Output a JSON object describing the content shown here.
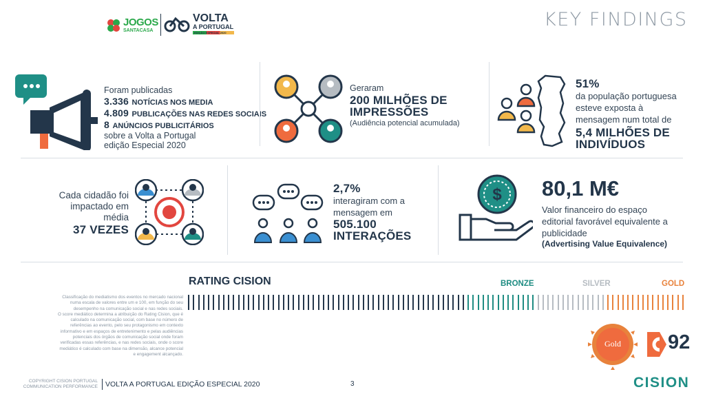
{
  "header": {
    "logo_jogos": "JOGOS",
    "logo_santacasa": "SANTACASA",
    "logo_volta_line1": "VOLTA",
    "logo_volta_line2": "A PORTUGAL",
    "logo_volta_line3": "EDIÇÃO ESPECIAL 2020",
    "title": "KEY FINDINGS"
  },
  "findings": {
    "publications": {
      "intro": "Foram publicadas",
      "news_count": "3.336",
      "news_label": "NOTÍCIAS NOS MEDIA",
      "social_count": "4.809",
      "social_label": "PUBLICAÇÕES NAS REDES SOCIAIS",
      "ads_count": "8",
      "ads_label": "ANÚNCIOS PUBLICITÁRIOS",
      "outro_line1": "sobre a Volta a Portugal",
      "outro_line2": "edição Especial 2020"
    },
    "impressions": {
      "intro": "Geraram",
      "value_line1": "200 MILHÕES DE",
      "value_line2": "IMPRESSÕES",
      "note": "(Audiência potencial acumulada)"
    },
    "population": {
      "percent": "51%",
      "line1": "da população portuguesa",
      "line2": "esteve exposta à",
      "line3": "mensagem num total de",
      "value_line1": "5,4 MILHÕES DE",
      "value_line2": "INDIVÍDUOS"
    },
    "impact": {
      "line1": "Cada cidadão foi",
      "line2": "impactado em",
      "line3": "média",
      "value": "37 VEZES"
    },
    "interaction": {
      "percent": "2,7%",
      "line1": "interagiram com a",
      "line2": "mensagem em",
      "value_line1": "505.100",
      "value_line2": "INTERAÇÕES"
    },
    "ave": {
      "value": "80,1 M€",
      "line1": "Valor financeiro do espaço",
      "line2": "editorial favorável equivalente a",
      "line3": "publicidade",
      "line4": "(Advertising Value Equivalence)"
    }
  },
  "rating": {
    "title": "RATING CISION",
    "bronze": "BRONZE",
    "silver": "SILVER",
    "gold": "GOLD",
    "medal_label": "Gold",
    "score": "92",
    "description": [
      "Classificação do mediatismo dos eventos no mercado nacional",
      "numa escala de valores entre um e 100, em função do seu",
      "desempenho na comunicação social e nas redes sociais.",
      "O score mediático determina a atribuição do Rating Cision, que é",
      "calculado na comunicação social, com base no número de",
      "referências ao evento, pelo seu protagonismo em contexto",
      "informativo e em espaços de entretenimento e pelas audiências",
      "potenciais dos órgãos de comunicação social onde foram",
      "verificadas essas referências, e nas redes sociais, onde o score",
      "mediático é calculado com base na dimensão, alcance potencial",
      "e engagement alcançado."
    ],
    "colors": {
      "navy": "#23364a",
      "bronze": "#1e8c82",
      "silver": "#b6bcc2",
      "gold": "#e8823c"
    }
  },
  "footer": {
    "copyright_line1": "COPYRIGHT CISION PORTUGAL",
    "copyright_line2": "COMMUNICATION PERFORMANCE",
    "report": "VOLTA A PORTUGAL EDIÇÃO ESPECIAL 2020",
    "page": "3",
    "brand": "CISION"
  },
  "palette": {
    "teal": "#1f8f86",
    "orange": "#ef6b3e",
    "yellow": "#f2b84b",
    "blue": "#3a8fd1",
    "red": "#e2463f",
    "navy": "#23364a",
    "green_logo": "#2aa84a"
  },
  "icons": {
    "megaphone": "megaphone-icon",
    "network": "people-network-icon",
    "map": "portugal-map-icon",
    "target": "target-people-icon",
    "chat": "chat-people-icon",
    "money": "money-hand-icon"
  }
}
